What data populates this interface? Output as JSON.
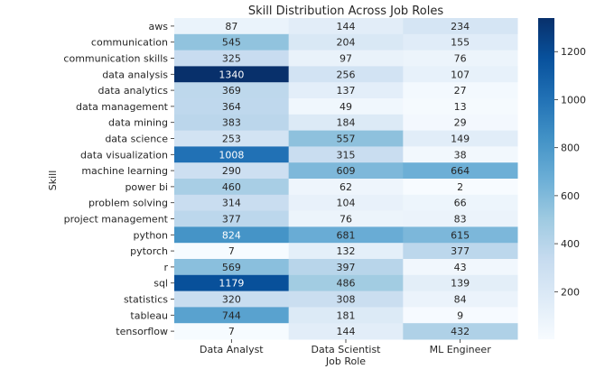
{
  "chart_data": {
    "type": "heatmap",
    "title": "Skill Distribution Across Job Roles",
    "xlabel": "Job Role",
    "ylabel": "Skill",
    "columns": [
      "Data Analyst",
      "Data Scientist",
      "ML Engineer"
    ],
    "rows": [
      "aws",
      "communication",
      "communication skills",
      "data analysis",
      "data analytics",
      "data management",
      "data mining",
      "data science",
      "data visualization",
      "machine learning",
      "power bi",
      "problem solving",
      "project management",
      "python",
      "pytorch",
      "r",
      "sql",
      "statistics",
      "tableau",
      "tensorflow"
    ],
    "values": [
      [
        87,
        144,
        234
      ],
      [
        545,
        204,
        155
      ],
      [
        325,
        97,
        76
      ],
      [
        1340,
        256,
        107
      ],
      [
        369,
        137,
        27
      ],
      [
        364,
        49,
        13
      ],
      [
        383,
        184,
        29
      ],
      [
        253,
        557,
        149
      ],
      [
        1008,
        315,
        38
      ],
      [
        290,
        609,
        664
      ],
      [
        460,
        62,
        2
      ],
      [
        314,
        104,
        66
      ],
      [
        377,
        76,
        83
      ],
      [
        824,
        681,
        615
      ],
      [
        7,
        132,
        377
      ],
      [
        569,
        397,
        43
      ],
      [
        1179,
        486,
        139
      ],
      [
        320,
        308,
        84
      ],
      [
        744,
        181,
        9
      ],
      [
        7,
        144,
        432
      ]
    ],
    "colorbar": {
      "colormap": "Blues",
      "range": [
        2,
        1340
      ],
      "ticks": [
        "200",
        "400",
        "600",
        "800",
        "1000",
        "1200"
      ]
    },
    "annotations": true,
    "grid": false
  }
}
